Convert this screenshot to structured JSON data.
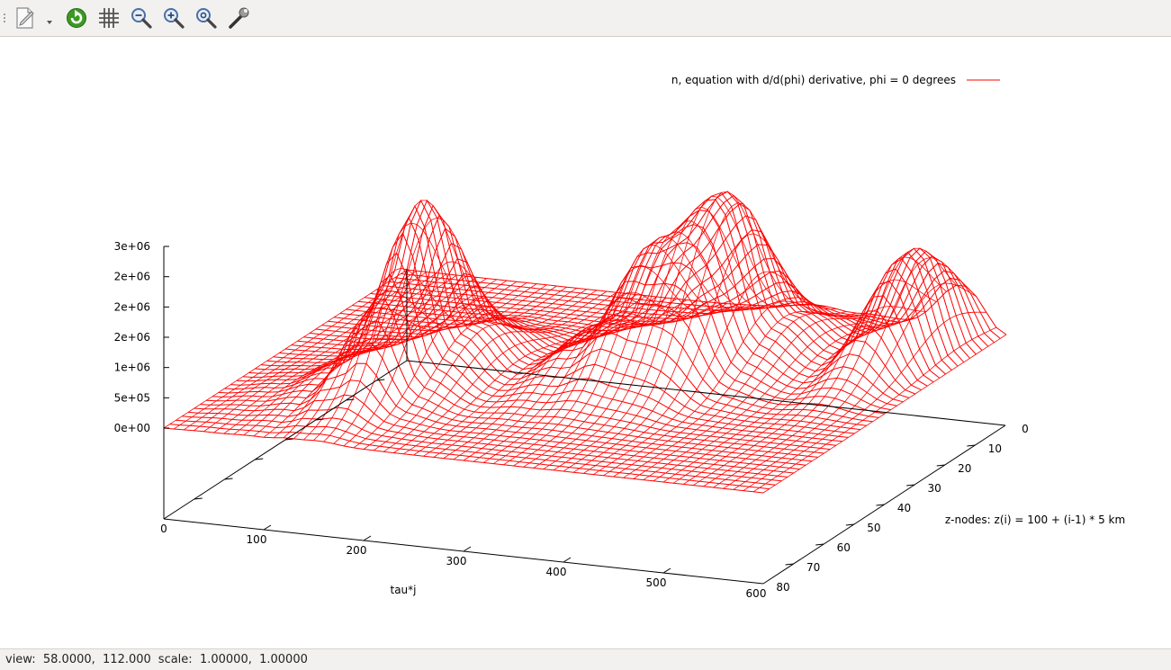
{
  "toolbar": {
    "buttons": [
      {
        "name": "export-icon"
      },
      {
        "name": "export-menu-arrow-icon"
      },
      {
        "name": "replot-icon"
      },
      {
        "name": "grid-icon"
      },
      {
        "name": "zoom-previous-icon"
      },
      {
        "name": "zoom-next-icon"
      },
      {
        "name": "autoscale-icon"
      },
      {
        "name": "settings-wrench-icon"
      }
    ]
  },
  "status": {
    "view_label": "view:",
    "view_value": "58.0000,  112.000",
    "scale_label": "scale:",
    "scale_value": "1.00000,  1.00000"
  },
  "chart_data": {
    "type": "surface",
    "view": {
      "rot_x": 58,
      "rot_z": 112
    },
    "legend": {
      "label": "n, equation with d/d(phi) derivative, phi = 0 degrees",
      "color": "#ff0000",
      "placement": "top-right"
    },
    "xlabel": "tau*j",
    "ylabel": "z-nodes: z(i) = 100 + (i-1) * 5 km",
    "zlabel": "",
    "xlim": [
      0,
      600
    ],
    "ylim": [
      0,
      80
    ],
    "zlim": [
      0,
      3000000
    ],
    "x_ticks": [
      "0",
      "100",
      "200",
      "300",
      "400",
      "500",
      "600"
    ],
    "y_ticks": [
      "0",
      "10",
      "20",
      "30",
      "40",
      "50",
      "60",
      "70",
      "80"
    ],
    "z_ticks": [
      "0e+00",
      "5e+05",
      "1e+06",
      "2e+06",
      "2e+06",
      "2e+06",
      "3e+06"
    ],
    "z_tick_values": [
      0,
      500000,
      1000000,
      1500000,
      2000000,
      2500000,
      3000000
    ],
    "series_color": "#ff0000",
    "ridge_profile": {
      "description_values_only": false,
      "x": [
        0,
        50,
        100,
        130,
        160,
        200,
        250,
        300,
        350,
        400,
        450,
        500,
        550,
        600
      ],
      "peak_n": [
        0,
        100000,
        400000,
        1500000,
        3000000,
        900000,
        250000,
        800000,
        2200000,
        2900000,
        800000,
        300000,
        1800000,
        0
      ]
    }
  }
}
